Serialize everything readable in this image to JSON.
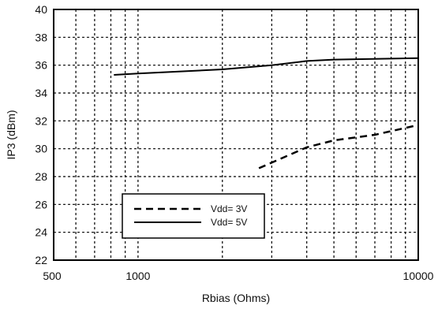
{
  "chart_data": {
    "type": "line",
    "xlabel": "Rbias (Ohms)",
    "ylabel": "IP3 (dBm)",
    "x_scale": "log",
    "xlim": [
      500,
      10000
    ],
    "ylim": [
      22,
      40
    ],
    "x_tick_labels": [
      {
        "value": 500,
        "label": "500"
      },
      {
        "value": 1000,
        "label": "1000"
      },
      {
        "value": 10000,
        "label": "10000"
      }
    ],
    "y_ticks": [
      22,
      24,
      26,
      28,
      30,
      32,
      34,
      36,
      38,
      40
    ],
    "grid": true,
    "legend_position": "bottom-center",
    "series": [
      {
        "name": "Vdd= 3V",
        "style": "dashed",
        "color": "#000000",
        "x": [
          2700,
          4000,
          5000,
          7000,
          10000
        ],
        "y": [
          28.6,
          30.1,
          30.6,
          31.0,
          31.7
        ]
      },
      {
        "name": "Vdd= 5V",
        "style": "solid",
        "color": "#000000",
        "x": [
          820,
          1000,
          2000,
          3000,
          4000,
          5000,
          10000
        ],
        "y": [
          35.3,
          35.4,
          35.7,
          36.0,
          36.3,
          36.4,
          36.5
        ]
      }
    ]
  }
}
